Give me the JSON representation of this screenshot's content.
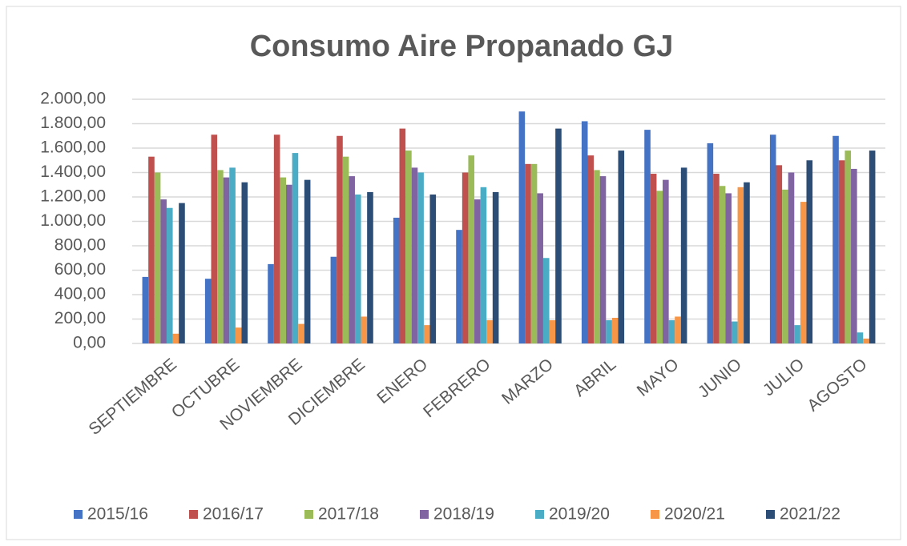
{
  "chart_data": {
    "type": "bar",
    "title": "Consumo Aire Propanado GJ",
    "categories": [
      "SEPTIEMBRE",
      "OCTUBRE",
      "NOVIEMBRE",
      "DICIEMBRE",
      "ENERO",
      "FEBRERO",
      "MARZO",
      "ABRIL",
      "MAYO",
      "JUNIO",
      "JULIO",
      "AGOSTO"
    ],
    "series": [
      {
        "name": "2015/16",
        "color": "#4472c4",
        "values": [
          545,
          530,
          650,
          710,
          1030,
          930,
          1900,
          1820,
          1750,
          1640,
          1710,
          1700
        ]
      },
      {
        "name": "2016/17",
        "color": "#c0504d",
        "values": [
          1530,
          1710,
          1710,
          1700,
          1760,
          1400,
          1470,
          1540,
          1390,
          1390,
          1460,
          1500
        ]
      },
      {
        "name": "2017/18",
        "color": "#9bbb59",
        "values": [
          1400,
          1420,
          1360,
          1530,
          1580,
          1540,
          1470,
          1420,
          1250,
          1290,
          1260,
          1580
        ]
      },
      {
        "name": "2018/19",
        "color": "#8064a2",
        "values": [
          1180,
          1360,
          1300,
          1370,
          1440,
          1180,
          1230,
          1370,
          1340,
          1230,
          1400,
          1430
        ]
      },
      {
        "name": "2019/20",
        "color": "#4bacc6",
        "values": [
          1110,
          1440,
          1560,
          1220,
          1400,
          1280,
          700,
          190,
          190,
          180,
          150,
          90
        ]
      },
      {
        "name": "2020/21",
        "color": "#f79646",
        "values": [
          80,
          130,
          160,
          220,
          150,
          190,
          190,
          210,
          220,
          1280,
          1160,
          40
        ]
      },
      {
        "name": "2021/22",
        "color": "#2c4d75",
        "values": [
          1150,
          1320,
          1340,
          1240,
          1220,
          1240,
          1760,
          1580,
          1440,
          1320,
          1500,
          1580
        ]
      }
    ],
    "ylim": [
      0,
      2000
    ],
    "yticks": [
      {
        "value": 0,
        "label": "0,00"
      },
      {
        "value": 200,
        "label": "200,00"
      },
      {
        "value": 400,
        "label": "400,00"
      },
      {
        "value": 600,
        "label": "600,00"
      },
      {
        "value": 800,
        "label": "800,00"
      },
      {
        "value": 1000,
        "label": "1.000,00"
      },
      {
        "value": 1200,
        "label": "1.200,00"
      },
      {
        "value": 1400,
        "label": "1.400,00"
      },
      {
        "value": 1600,
        "label": "1.600,00"
      },
      {
        "value": 1800,
        "label": "1.800,00"
      },
      {
        "value": 2000,
        "label": "2.000,00"
      }
    ],
    "grid": true,
    "legend": "bottom"
  }
}
